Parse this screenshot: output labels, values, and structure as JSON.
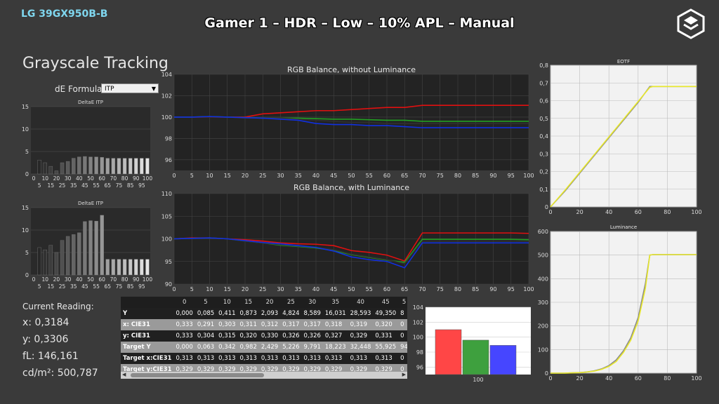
{
  "header": {
    "model": "LG 39GX950B-B",
    "title": "Gamer 1 – HDR – Low – 10% APL – Manual"
  },
  "section_title": "Grayscale Tracking",
  "de_formula": {
    "label": "dE Formula:",
    "value": "ITP"
  },
  "readings": {
    "header": "Current Reading:",
    "x": "x: 0,3184",
    "y": "y: 0,3306",
    "fl": "fL: 146,161",
    "cd": "cd/m²: 500,787"
  },
  "table": {
    "columns": [
      "",
      "0",
      "5",
      "10",
      "15",
      "20",
      "25",
      "30",
      "35",
      "40",
      "45",
      "5"
    ],
    "rows": [
      {
        "label": "Y",
        "values": [
          "0,000",
          "0,085",
          "0,411",
          "0,873",
          "2,093",
          "4,824",
          "8,589",
          "16,031",
          "28,593",
          "49,350",
          "8"
        ]
      },
      {
        "label": "x: CIE31",
        "values": [
          "0,333",
          "0,291",
          "0,303",
          "0,311",
          "0,312",
          "0,317",
          "0,317",
          "0,318",
          "0,319",
          "0,320",
          "0"
        ]
      },
      {
        "label": "y: CIE31",
        "values": [
          "0,333",
          "0,304",
          "0,315",
          "0,320",
          "0,330",
          "0,326",
          "0,326",
          "0,327",
          "0,329",
          "0,331",
          "0"
        ]
      },
      {
        "label": "Target Y",
        "values": [
          "0,000",
          "0,063",
          "0,342",
          "0,982",
          "2,429",
          "5,226",
          "9,791",
          "18,223",
          "32,448",
          "55,925",
          "94"
        ]
      },
      {
        "label": "Target x:CIE31",
        "values": [
          "0,313",
          "0,313",
          "0,313",
          "0,313",
          "0,313",
          "0,313",
          "0,313",
          "0,313",
          "0,313",
          "0,313",
          "0"
        ]
      },
      {
        "label": "Target y:CIE31",
        "values": [
          "0,329",
          "0,329",
          "0,329",
          "0,329",
          "0,329",
          "0,329",
          "0,329",
          "0,329",
          "0,329",
          "0,329",
          "0"
        ]
      }
    ]
  },
  "chart_data": [
    {
      "id": "deltae1",
      "type": "bar",
      "title": "DeltaE ITP",
      "categories": [
        "0",
        "5",
        "10",
        "15",
        "20",
        "25",
        "30",
        "35",
        "40",
        "45",
        "50",
        "55",
        "60",
        "65",
        "70",
        "75",
        "80",
        "85",
        "90",
        "95",
        "100"
      ],
      "values": [
        0,
        3.1,
        2.5,
        1.7,
        0.7,
        2.5,
        2.8,
        3.5,
        3.8,
        3.9,
        3.8,
        3.8,
        3.7,
        3.5,
        3.5,
        3.5,
        3.5,
        3.5,
        3.5,
        3.5,
        3.5
      ],
      "ylim": [
        0,
        15
      ],
      "yticks": [
        0,
        5,
        10,
        15
      ],
      "xticks_top": [
        "0",
        "10",
        "20",
        "30",
        "40",
        "50",
        "60",
        "70",
        "80",
        "90",
        "100"
      ],
      "xticks_bottom": [
        "5",
        "15",
        "25",
        "35",
        "45",
        "55",
        "65",
        "75",
        "85",
        "95"
      ]
    },
    {
      "id": "deltae2",
      "type": "bar",
      "title": "DeltaE ITP",
      "categories": [
        "0",
        "5",
        "10",
        "15",
        "20",
        "25",
        "30",
        "35",
        "40",
        "45",
        "50",
        "55",
        "60",
        "65",
        "70",
        "75",
        "80",
        "85",
        "90",
        "95",
        "100"
      ],
      "values": [
        0,
        6.1,
        5.6,
        6.6,
        5.0,
        7.7,
        8.6,
        9.0,
        9.4,
        11.9,
        12.1,
        12.0,
        13.3,
        3.5,
        3.5,
        3.5,
        3.5,
        3.5,
        3.5,
        3.5,
        3.5
      ],
      "ylim": [
        0,
        15
      ],
      "yticks": [
        0,
        5,
        10,
        15
      ],
      "xticks_top": [
        "0",
        "10",
        "20",
        "30",
        "40",
        "50",
        "60",
        "70",
        "80",
        "90",
        "100"
      ],
      "xticks_bottom": [
        "5",
        "15",
        "25",
        "35",
        "45",
        "55",
        "65",
        "75",
        "85",
        "95"
      ]
    },
    {
      "id": "rgb1",
      "type": "line",
      "title": "RGB Balance, without Luminance",
      "x": [
        0,
        5,
        10,
        15,
        20,
        25,
        30,
        35,
        40,
        45,
        50,
        55,
        60,
        65,
        70,
        75,
        80,
        85,
        90,
        95,
        100
      ],
      "series": [
        {
          "color": "#e01010",
          "values": [
            100,
            100,
            100,
            100,
            100,
            100.3,
            100.4,
            100.5,
            100.6,
            100.6,
            100.7,
            100.8,
            100.9,
            100.9,
            101.1,
            101.1,
            101.1,
            101.1,
            101.1,
            101.1,
            101.1
          ]
        },
        {
          "color": "#22a022",
          "values": [
            100,
            100,
            100.05,
            100,
            99.95,
            99.9,
            99.9,
            99.9,
            99.85,
            99.8,
            99.8,
            99.75,
            99.7,
            99.7,
            99.6,
            99.6,
            99.6,
            99.6,
            99.6,
            99.6,
            99.6
          ]
        },
        {
          "color": "#303030",
          "values": [
            100,
            100,
            100,
            100,
            99.9,
            99.9,
            99.9,
            99.8,
            99.7,
            99.6,
            99.5,
            99.5,
            99.4,
            99.4,
            99.4,
            99.4,
            99.4,
            99.4,
            99.4,
            99.4,
            99.4
          ]
        },
        {
          "color": "#1030e0",
          "values": [
            100,
            100,
            100.05,
            100,
            99.95,
            99.9,
            99.8,
            99.7,
            99.4,
            99.3,
            99.3,
            99.2,
            99.2,
            99.1,
            99.0,
            99.0,
            99.0,
            99.0,
            99.0,
            99.0,
            99.0
          ]
        }
      ],
      "ylim": [
        95,
        104
      ],
      "yticks": [
        96,
        98,
        100,
        102,
        104
      ],
      "xticks": [
        0,
        5,
        10,
        15,
        20,
        25,
        30,
        35,
        40,
        45,
        50,
        55,
        60,
        65,
        70,
        75,
        80,
        85,
        90,
        95,
        100
      ]
    },
    {
      "id": "rgb2",
      "type": "line",
      "title": "RGB Balance, with Luminance",
      "x": [
        0,
        5,
        10,
        15,
        20,
        25,
        30,
        35,
        40,
        45,
        50,
        55,
        60,
        65,
        70,
        75,
        80,
        85,
        90,
        95,
        100
      ],
      "series": [
        {
          "color": "#e01010",
          "values": [
            100,
            100.2,
            100.2,
            100,
            99.8,
            99.5,
            99.1,
            98.9,
            98.8,
            98.5,
            97.4,
            97.0,
            96.4,
            95.1,
            101.3,
            101.3,
            101.3,
            101.3,
            101.3,
            101.3,
            101.2
          ]
        },
        {
          "color": "#22a022",
          "values": [
            100,
            100.1,
            100.2,
            100,
            99.5,
            99.1,
            98.6,
            98.3,
            98.0,
            97.4,
            96.5,
            95.9,
            95.3,
            94.8,
            99.9,
            99.9,
            99.9,
            99.9,
            99.9,
            99.9,
            99.8
          ]
        },
        {
          "color": "#303030",
          "values": [
            100,
            100.1,
            100.2,
            100,
            99.5,
            99.1,
            98.7,
            98.4,
            98.1,
            97.6,
            96.6,
            96.0,
            95.4,
            94.5,
            99.5,
            99.5,
            99.5,
            99.5,
            99.5,
            99.5,
            99.4
          ]
        },
        {
          "color": "#1030e0",
          "values": [
            100,
            100.1,
            100.2,
            100,
            99.6,
            99.2,
            98.9,
            98.5,
            98.1,
            97.3,
            96.0,
            95.4,
            95.0,
            93.6,
            99.1,
            99.1,
            99.1,
            99.1,
            99.1,
            99.1,
            99.1
          ]
        }
      ],
      "ylim": [
        90,
        110
      ],
      "yticks": [
        90,
        95,
        100,
        105,
        110
      ],
      "xticks": [
        0,
        5,
        10,
        15,
        20,
        25,
        30,
        35,
        40,
        45,
        50,
        55,
        60,
        65,
        70,
        75,
        80,
        85,
        90,
        95,
        100
      ]
    },
    {
      "id": "eotf",
      "type": "line",
      "title": "EOTF",
      "x": [
        0,
        10,
        20,
        30,
        40,
        50,
        60,
        68,
        70,
        80,
        90,
        100
      ],
      "series": [
        {
          "color": "#8a8a8a",
          "values": [
            0,
            0.09,
            0.19,
            0.29,
            0.39,
            0.49,
            0.59,
            0.68,
            0.68,
            0.68,
            0.68,
            0.68
          ]
        },
        {
          "color": "#e8e82a",
          "values": [
            0,
            0.095,
            0.195,
            0.295,
            0.395,
            0.495,
            0.595,
            0.675,
            0.68,
            0.68,
            0.68,
            0.68
          ]
        }
      ],
      "ylim": [
        0,
        0.8
      ],
      "yticks": [
        "0",
        "0,1",
        "0,2",
        "0,3",
        "0,4",
        "0,5",
        "0,6",
        "0,7",
        "0,8"
      ],
      "xticks": [
        0,
        20,
        40,
        60,
        80,
        100
      ]
    },
    {
      "id": "lum",
      "type": "line",
      "title": "Luminance",
      "x": [
        0,
        10,
        20,
        25,
        30,
        35,
        40,
        45,
        50,
        55,
        60,
        65,
        68,
        70,
        80,
        90,
        100
      ],
      "series": [
        {
          "color": "#8a8a8a",
          "values": [
            0,
            0.1,
            2.4,
            5.2,
            10,
            18,
            32,
            56,
            95,
            150,
            235,
            380,
            500,
            502,
            502,
            502,
            502
          ]
        },
        {
          "color": "#e8e82a",
          "values": [
            0,
            0.1,
            2.1,
            4.8,
            8.6,
            16,
            28.6,
            49.4,
            88,
            140,
            220,
            360,
            500,
            502,
            502,
            502,
            502
          ]
        }
      ],
      "ylim": [
        0,
        600
      ],
      "yticks": [
        0,
        100,
        200,
        300,
        400,
        500,
        600
      ],
      "xticks": [
        0,
        20,
        40,
        60,
        80,
        100
      ]
    },
    {
      "id": "rgbbar",
      "type": "bar",
      "categories": [
        "100"
      ],
      "series": [
        {
          "color": "#ff4646",
          "values": [
            101.0
          ]
        },
        {
          "color": "#3ea03e",
          "values": [
            99.6
          ]
        },
        {
          "color": "#4646ff",
          "values": [
            98.9
          ]
        }
      ],
      "ylim": [
        95,
        104
      ],
      "yticks": [
        96,
        98,
        100,
        102,
        104
      ]
    }
  ]
}
